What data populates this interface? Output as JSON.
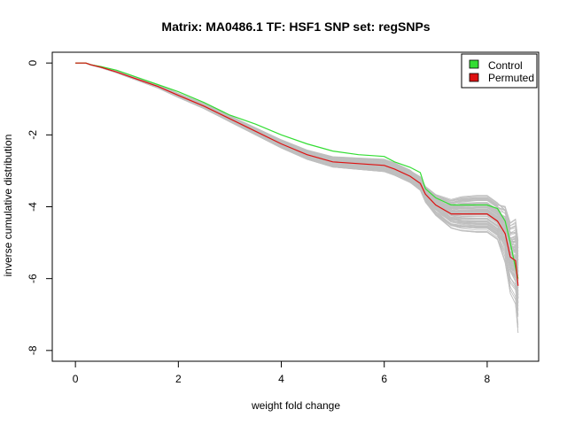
{
  "chart_data": {
    "type": "line",
    "title": "Matrix: MA0486.1 TF: HSF1 SNP set: regSNPs",
    "xlabel": "weight fold change",
    "ylabel": "inverse cumulative distribution",
    "xlim": [
      -0.45,
      9.0
    ],
    "ylim": [
      -8.3,
      0.3
    ],
    "x_ticks": [
      0,
      2,
      4,
      6,
      8
    ],
    "y_ticks": [
      0,
      -2,
      -4,
      -6,
      -8
    ],
    "legend_position": "top-right",
    "grid": false,
    "colors": {
      "control": "#33dd33",
      "permuted": "#dd1111",
      "background_lines": "#bfbfbf"
    },
    "legend": [
      {
        "label": "Control",
        "color": "#33dd33"
      },
      {
        "label": "Permuted",
        "color": "#dd1111"
      }
    ],
    "series": [
      {
        "name": "Control",
        "x": [
          0.0,
          0.2,
          0.3,
          0.5,
          0.8,
          1.0,
          1.3,
          1.6,
          2.0,
          2.5,
          3.0,
          3.5,
          4.0,
          4.5,
          5.0,
          5.5,
          6.0,
          6.2,
          6.5,
          6.7,
          6.8,
          7.0,
          7.3,
          7.5,
          7.8,
          8.0,
          8.2,
          8.35,
          8.45,
          8.55,
          8.6
        ],
        "y": [
          0.0,
          0.0,
          -0.05,
          -0.1,
          -0.2,
          -0.3,
          -0.45,
          -0.6,
          -0.8,
          -1.1,
          -1.45,
          -1.7,
          -2.0,
          -2.25,
          -2.45,
          -2.55,
          -2.6,
          -2.75,
          -2.9,
          -3.05,
          -3.5,
          -3.75,
          -3.95,
          -3.95,
          -3.95,
          -3.95,
          -4.05,
          -4.4,
          -5.0,
          -5.7,
          -6.0
        ]
      },
      {
        "name": "Permuted",
        "x": [
          0.0,
          0.2,
          0.3,
          0.5,
          0.8,
          1.0,
          1.3,
          1.6,
          2.0,
          2.5,
          3.0,
          3.5,
          4.0,
          4.5,
          5.0,
          5.5,
          6.0,
          6.2,
          6.5,
          6.7,
          6.8,
          7.0,
          7.3,
          7.5,
          7.8,
          8.0,
          8.2,
          8.35,
          8.45,
          8.55,
          8.6
        ],
        "y": [
          0.0,
          0.0,
          -0.05,
          -0.12,
          -0.25,
          -0.35,
          -0.5,
          -0.65,
          -0.9,
          -1.2,
          -1.55,
          -1.9,
          -2.25,
          -2.55,
          -2.75,
          -2.8,
          -2.85,
          -2.95,
          -3.15,
          -3.35,
          -3.65,
          -3.95,
          -4.2,
          -4.2,
          -4.2,
          -4.2,
          -4.4,
          -4.75,
          -5.4,
          -5.5,
          -6.2
        ]
      }
    ]
  }
}
